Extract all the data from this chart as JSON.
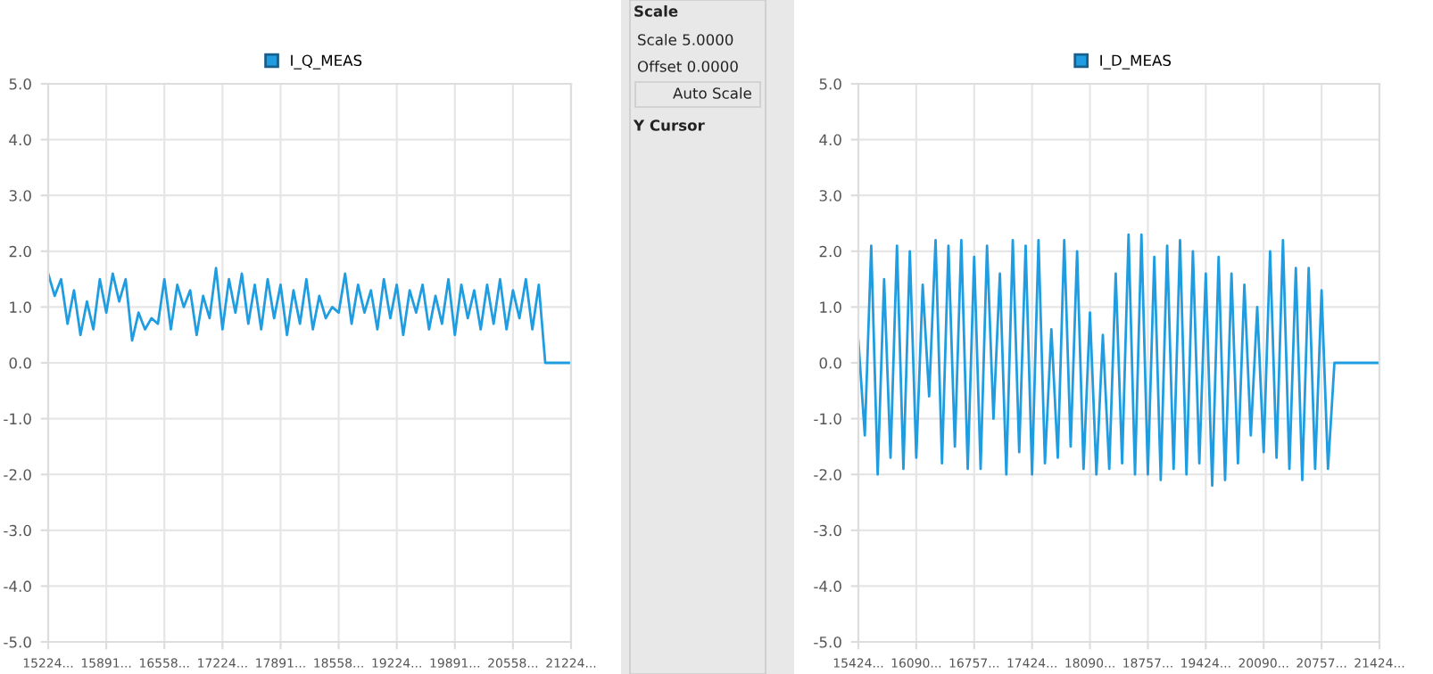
{
  "chart_data": [
    {
      "type": "line",
      "legend": "top",
      "grid": true,
      "marker": "none",
      "line_style": "solid",
      "categories": [
        "15224...",
        null,
        null,
        null,
        null,
        null,
        null,
        null,
        null,
        "15891...",
        null,
        null,
        null,
        null,
        null,
        null,
        null,
        null,
        "16558...",
        null,
        null,
        null,
        null,
        null,
        null,
        null,
        null,
        "17224...",
        null,
        null,
        null,
        null,
        null,
        null,
        null,
        null,
        "17891...",
        null,
        null,
        null,
        null,
        null,
        null,
        null,
        null,
        "18558...",
        null,
        null,
        null,
        null,
        null,
        null,
        null,
        null,
        "19224...",
        null,
        null,
        null,
        null,
        null,
        null,
        null,
        null,
        "19891...",
        null,
        null,
        null,
        null,
        null,
        null,
        null,
        null,
        "20558...",
        null,
        null,
        null,
        null,
        null,
        null,
        null,
        null,
        "21224..."
      ],
      "ylim": [
        -5,
        5
      ],
      "yticks": [
        {
          "value": -5,
          "label": "-5.0"
        },
        {
          "value": -4,
          "label": "-4.0"
        },
        {
          "value": -3,
          "label": "-3.0"
        },
        {
          "value": -2,
          "label": "-2.0"
        },
        {
          "value": -1,
          "label": "-1.0"
        },
        {
          "value": 0,
          "label": "0.0"
        },
        {
          "value": 1,
          "label": "1.0"
        },
        {
          "value": 2,
          "label": "2.0"
        },
        {
          "value": 3,
          "label": "3.0"
        },
        {
          "value": 4,
          "label": "4.0"
        },
        {
          "value": 5,
          "label": "5.0"
        }
      ],
      "series": [
        {
          "name": "I_Q_MEAS",
          "color": "#1f9de0",
          "values": [
            1.6,
            1.2,
            1.5,
            0.7,
            1.3,
            0.5,
            1.1,
            0.6,
            1.5,
            0.9,
            1.6,
            1.1,
            1.5,
            0.4,
            0.9,
            0.6,
            0.8,
            0.7,
            1.5,
            0.6,
            1.4,
            1.0,
            1.3,
            0.5,
            1.2,
            0.8,
            1.7,
            0.6,
            1.5,
            0.9,
            1.6,
            0.7,
            1.4,
            0.6,
            1.5,
            0.8,
            1.4,
            0.5,
            1.3,
            0.7,
            1.5,
            0.6,
            1.2,
            0.8,
            1.0,
            0.9,
            1.6,
            0.7,
            1.4,
            0.9,
            1.3,
            0.6,
            1.5,
            0.8,
            1.4,
            0.5,
            1.3,
            0.9,
            1.4,
            0.6,
            1.2,
            0.7,
            1.5,
            0.5,
            1.4,
            0.8,
            1.3,
            0.6,
            1.4,
            0.7,
            1.5,
            0.6,
            1.3,
            0.8,
            1.5,
            0.6,
            1.4,
            0.0,
            0.0,
            0.0,
            0.0,
            0.0
          ]
        }
      ]
    },
    {
      "type": "other",
      "annotations": [
        "Scale",
        "Scale 5.0000",
        "Offset 0.0000",
        "Auto Scale",
        "Y Cursor"
      ]
    },
    {
      "type": "line",
      "legend": "top",
      "grid": true,
      "marker": "none",
      "line_style": "solid",
      "categories": [
        "15424...",
        null,
        null,
        null,
        null,
        null,
        null,
        null,
        null,
        "16090...",
        null,
        null,
        null,
        null,
        null,
        null,
        null,
        null,
        "16757...",
        null,
        null,
        null,
        null,
        null,
        null,
        null,
        null,
        "17424...",
        null,
        null,
        null,
        null,
        null,
        null,
        null,
        null,
        "18090...",
        null,
        null,
        null,
        null,
        null,
        null,
        null,
        null,
        "18757...",
        null,
        null,
        null,
        null,
        null,
        null,
        null,
        null,
        "19424...",
        null,
        null,
        null,
        null,
        null,
        null,
        null,
        null,
        "20090...",
        null,
        null,
        null,
        null,
        null,
        null,
        null,
        null,
        "20757...",
        null,
        null,
        null,
        null,
        null,
        null,
        null,
        null,
        "21424..."
      ],
      "ylim": [
        -5,
        5
      ],
      "yticks": [
        {
          "value": -5,
          "label": "-5.0"
        },
        {
          "value": -4,
          "label": "-4.0"
        },
        {
          "value": -3,
          "label": "-3.0"
        },
        {
          "value": -2,
          "label": "-2.0"
        },
        {
          "value": -1,
          "label": "-1.0"
        },
        {
          "value": 0,
          "label": "0.0"
        },
        {
          "value": 1,
          "label": "1.0"
        },
        {
          "value": 2,
          "label": "2.0"
        },
        {
          "value": 3,
          "label": "3.0"
        },
        {
          "value": 4,
          "label": "4.0"
        },
        {
          "value": 5,
          "label": "5.0"
        }
      ],
      "series": [
        {
          "name": "I_D_MEAS",
          "color": "#1f9de0",
          "values": [
            0.4,
            -1.3,
            2.1,
            -2.0,
            1.5,
            -1.7,
            2.1,
            -1.9,
            2.0,
            -1.7,
            1.4,
            -0.6,
            2.2,
            -1.8,
            2.1,
            -1.5,
            2.2,
            -1.9,
            1.9,
            -1.9,
            2.1,
            -1.0,
            1.6,
            -2.0,
            2.2,
            -1.6,
            2.1,
            -2.0,
            2.2,
            -1.8,
            0.6,
            -1.7,
            2.2,
            -1.5,
            2.0,
            -1.9,
            0.9,
            -2.0,
            0.5,
            -1.9,
            1.6,
            -1.8,
            2.3,
            -2.0,
            2.3,
            -2.0,
            1.9,
            -2.1,
            2.1,
            -1.9,
            2.2,
            -2.0,
            2.0,
            -1.8,
            1.6,
            -2.2,
            1.9,
            -2.1,
            1.6,
            -1.8,
            1.4,
            -1.3,
            1.0,
            -1.6,
            2.0,
            -1.7,
            2.2,
            -1.9,
            1.7,
            -2.1,
            1.7,
            -1.9,
            1.3,
            -1.9,
            0.0,
            0.0,
            0.0,
            0.0,
            0.0,
            0.0,
            0.0,
            0.0
          ]
        }
      ]
    }
  ]
}
